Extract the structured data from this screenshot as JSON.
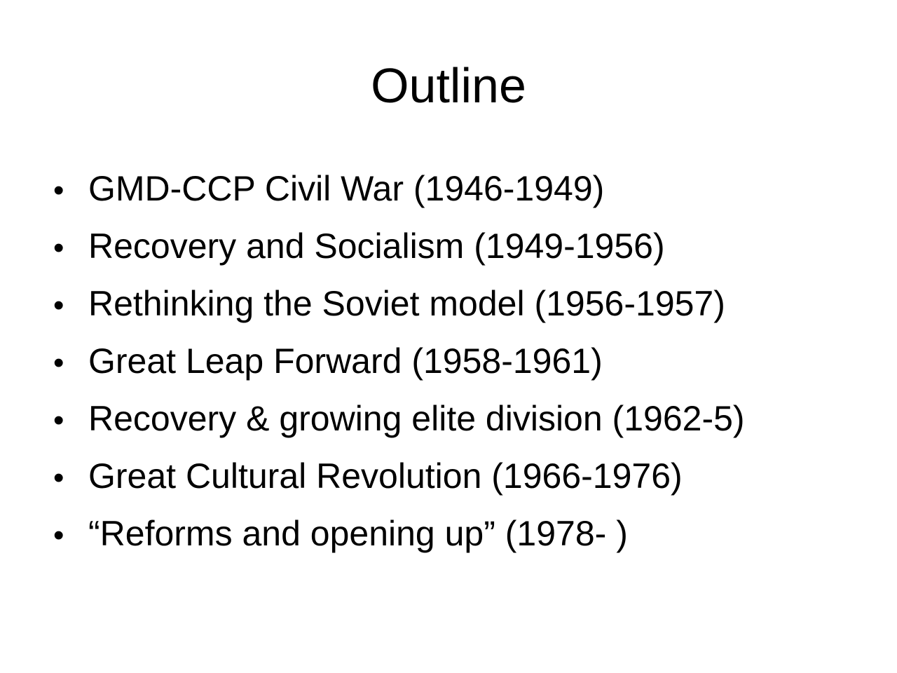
{
  "slide": {
    "title": "Outline",
    "bullet_glyph": "•",
    "items": [
      "GMD-CCP Civil War (1946-1949)",
      "Recovery and Socialism (1949-1956)",
      "Rethinking the Soviet model (1956-1957)",
      "Great Leap Forward (1958-1961)",
      "Recovery & growing elite division (1962-5)",
      "Great Cultural Revolution (1966-1976)",
      "“Reforms and opening up” (1978- )"
    ]
  }
}
